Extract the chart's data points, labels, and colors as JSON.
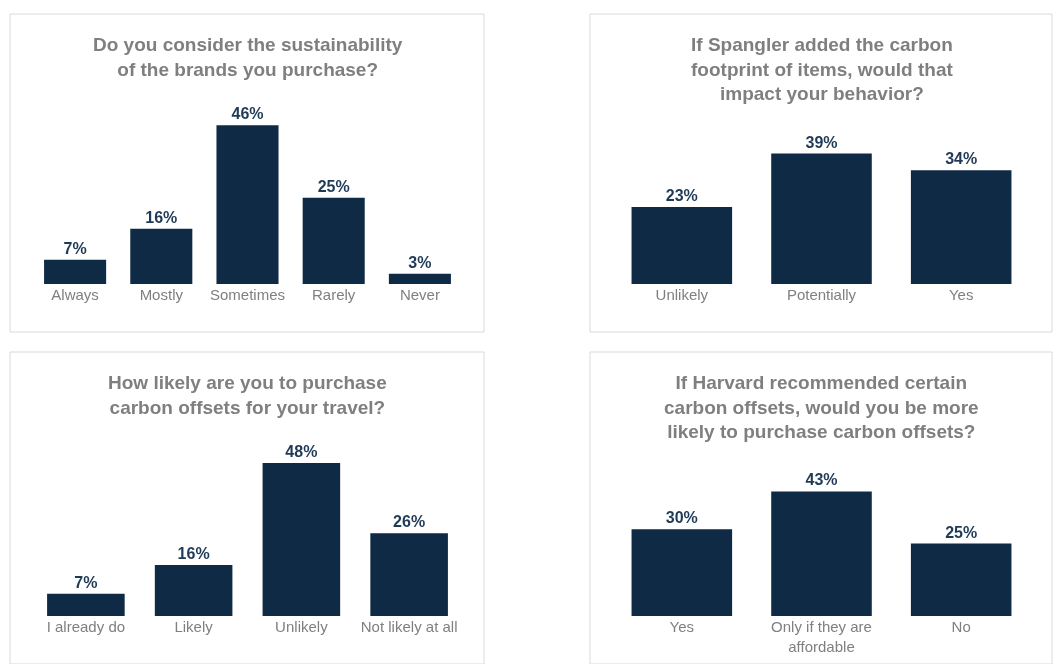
{
  "chart_data": [
    {
      "type": "bar",
      "title": "Do you consider the sustainability of the brands you purchase?",
      "categories": [
        "Always",
        "Mostly",
        "Sometimes",
        "Rarely",
        "Never"
      ],
      "values": [
        7,
        16,
        46,
        25,
        3
      ],
      "value_labels": [
        "7%",
        "16%",
        "46%",
        "25%",
        "3%"
      ],
      "color": "#0e2a45"
    },
    {
      "type": "bar",
      "title": "If Spangler added the carbon footprint of items, would that impact your behavior?",
      "categories": [
        "Unlikely",
        "Potentially",
        "Yes"
      ],
      "values": [
        23,
        39,
        34
      ],
      "value_labels": [
        "23%",
        "39%",
        "34%"
      ],
      "color": "#0e2a45"
    },
    {
      "type": "bar",
      "title": "How likely are you to purchase carbon offsets for your travel?",
      "categories": [
        "I already do",
        "Likely",
        "Unlikely",
        "Not likely at all"
      ],
      "values": [
        7,
        16,
        48,
        26
      ],
      "value_labels": [
        "7%",
        "16%",
        "48%",
        "26%"
      ],
      "color": "#0e2a45"
    },
    {
      "type": "bar",
      "title": "If Harvard recommended certain carbon offsets, would you be more likely to purchase carbon offsets?",
      "categories": [
        "Yes",
        "Only if they are affordable",
        "No"
      ],
      "values": [
        30,
        43,
        25
      ],
      "value_labels": [
        "30%",
        "43%",
        "25%"
      ],
      "color": "#0e2a45"
    }
  ]
}
